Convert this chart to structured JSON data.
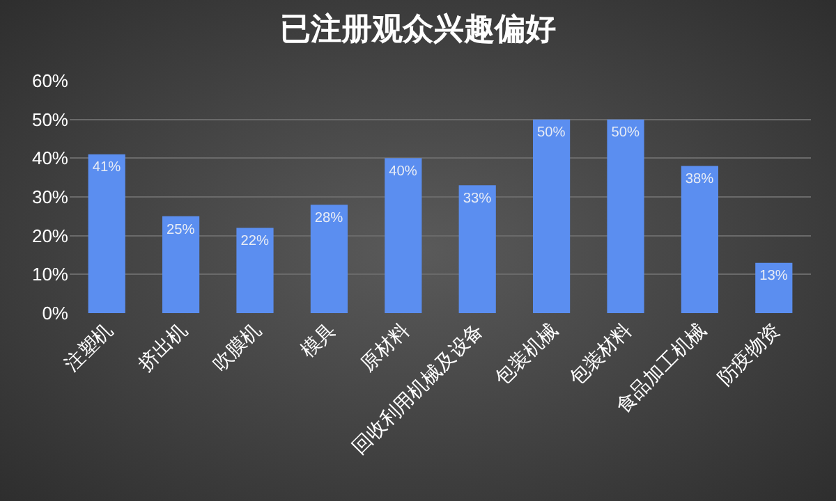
{
  "chart_data": {
    "type": "bar",
    "title": "已注册观众兴趣偏好",
    "categories": [
      "注塑机",
      "挤出机",
      "吹膜机",
      "模具",
      "原材料",
      "回收利用机械及设备",
      "包装机械",
      "包装材料",
      "食品加工机械",
      "防疫物资"
    ],
    "values": [
      41,
      25,
      22,
      28,
      40,
      33,
      50,
      50,
      38,
      13
    ],
    "value_labels": [
      "41%",
      "25%",
      "22%",
      "28%",
      "40%",
      "33%",
      "50%",
      "50%",
      "38%",
      "13%"
    ],
    "color": "#5b8ef0",
    "ylim": [
      0,
      60
    ],
    "yticks": [
      {
        "value": 0,
        "label": "0%"
      },
      {
        "value": 10,
        "label": "10%"
      },
      {
        "value": 20,
        "label": "20%"
      },
      {
        "value": 30,
        "label": "30%"
      },
      {
        "value": 40,
        "label": "40%"
      },
      {
        "value": 50,
        "label": "50%"
      },
      {
        "value": 60,
        "label": "60%"
      }
    ],
    "grid": "y"
  }
}
